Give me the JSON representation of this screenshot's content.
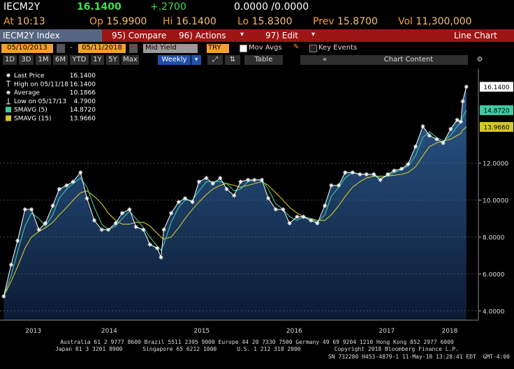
{
  "header": {
    "ticker": "IECM2Y",
    "price": "16.1400",
    "change": "+.2700",
    "bidask": "0.0000 /0.0000",
    "quote": [
      {
        "label": "At",
        "value": "10:13"
      },
      {
        "label": "Op",
        "value": "15.9900"
      },
      {
        "label": "Hi",
        "value": "16.1400"
      },
      {
        "label": "Lo",
        "value": "15.8300"
      },
      {
        "label": "Prev",
        "value": "15.8700"
      },
      {
        "label": "Vol",
        "value": "11,300,000"
      }
    ]
  },
  "toolbar": {
    "security": "IECM2Y Index",
    "menu": [
      "95) Compare",
      "96) Actions",
      "97) Edit"
    ],
    "view": "Line Chart",
    "start": "05/10/2013",
    "end": "05/11/2018",
    "field": "Mid Yield",
    "currency": "TRY",
    "mov_avgs": "Mov Avgs",
    "key_events": "Key Events",
    "ranges": [
      "1D",
      "3D",
      "1M",
      "6M",
      "YTD",
      "1Y",
      "5Y",
      "Max"
    ],
    "frequency": "Weekly",
    "table": "Table",
    "content": "Chart Content"
  },
  "chart_data": {
    "type": "line",
    "area": true,
    "grid": true,
    "x": [
      2013.36,
      2013.44,
      2013.51,
      2013.59,
      2013.66,
      2013.74,
      2013.81,
      2013.89,
      2013.96,
      2014.04,
      2014.11,
      2014.19,
      2014.26,
      2014.34,
      2014.42,
      2014.49,
      2014.57,
      2014.64,
      2014.72,
      2014.79,
      2014.87,
      2014.94,
      2015.02,
      2015.06,
      2015.09,
      2015.17,
      2015.25,
      2015.32,
      2015.4,
      2015.47,
      2015.55,
      2015.62,
      2015.7,
      2015.77,
      2015.85,
      2015.92,
      2016.0,
      2016.07,
      2016.15,
      2016.22,
      2016.3,
      2016.38,
      2016.45,
      2016.53,
      2016.6,
      2016.68,
      2016.75,
      2016.83,
      2016.9,
      2016.98,
      2017.05,
      2017.13,
      2017.21,
      2017.28,
      2017.36,
      2017.43,
      2017.51,
      2017.58,
      2017.66,
      2017.73,
      2017.81,
      2017.89,
      2017.96,
      2018.04,
      2018.11,
      2018.19,
      2018.26,
      2018.3,
      2018.32,
      2018.36
    ],
    "series": [
      {
        "name": "Last Price",
        "color": "#ffffff",
        "legend_value": "16.1400",
        "values": [
          4.79,
          6.5,
          7.8,
          9.5,
          9.5,
          8.4,
          8.75,
          9.7,
          10.6,
          10.8,
          11.0,
          11.5,
          10.1,
          8.9,
          8.4,
          8.4,
          8.75,
          9.3,
          9.5,
          8.55,
          8.4,
          7.6,
          7.4,
          6.9,
          8.4,
          9.3,
          9.9,
          10.1,
          9.9,
          11.0,
          11.2,
          10.9,
          11.2,
          10.6,
          10.25,
          11.0,
          11.1,
          11.1,
          11.1,
          10.1,
          9.5,
          9.5,
          8.75,
          9.1,
          9.1,
          8.9,
          8.75,
          9.7,
          10.8,
          10.8,
          11.5,
          11.5,
          11.4,
          11.4,
          11.4,
          11.1,
          11.4,
          11.6,
          11.7,
          11.95,
          12.9,
          14.0,
          13.5,
          13.3,
          13.1,
          13.85,
          14.35,
          14.25,
          15.35,
          16.14
        ]
      },
      {
        "name": "SMAVG (5)",
        "color": "#3fc9a0",
        "legend_value": "14.8720",
        "values": [
          4.79,
          5.9,
          7.2,
          8.6,
          9.3,
          9.0,
          8.6,
          9.2,
          10.1,
          10.6,
          10.9,
          11.2,
          10.7,
          9.6,
          8.7,
          8.4,
          8.6,
          9.0,
          9.4,
          9.0,
          8.5,
          8.0,
          7.5,
          7.3,
          7.6,
          8.8,
          9.6,
          10.0,
          10.0,
          10.5,
          11.0,
          11.0,
          11.0,
          10.9,
          10.5,
          10.6,
          11.0,
          11.1,
          11.1,
          10.6,
          9.8,
          9.5,
          9.1,
          8.9,
          9.1,
          9.0,
          8.8,
          9.2,
          10.2,
          10.7,
          11.2,
          11.5,
          11.4,
          11.4,
          11.4,
          11.2,
          11.3,
          11.5,
          11.65,
          11.85,
          12.4,
          13.4,
          13.7,
          13.4,
          13.2,
          13.5,
          14.0,
          14.2,
          14.5,
          14.872
        ]
      },
      {
        "name": "SMAVG (15)",
        "color": "#d6c82a",
        "legend_value": "13.9660",
        "values": [
          4.79,
          5.6,
          6.4,
          7.4,
          8.0,
          8.3,
          8.5,
          8.8,
          9.2,
          9.6,
          10.0,
          10.4,
          10.5,
          10.2,
          9.8,
          9.3,
          8.9,
          8.7,
          8.7,
          8.8,
          8.8,
          8.6,
          8.2,
          8.0,
          7.9,
          8.0,
          8.5,
          9.0,
          9.5,
          9.9,
          10.3,
          10.6,
          10.8,
          10.9,
          10.8,
          10.7,
          10.8,
          10.9,
          11.0,
          10.8,
          10.4,
          10.0,
          9.6,
          9.3,
          9.1,
          9.0,
          8.9,
          8.9,
          9.2,
          9.7,
          10.2,
          10.7,
          11.0,
          11.2,
          11.3,
          11.3,
          11.3,
          11.35,
          11.4,
          11.5,
          11.8,
          12.4,
          12.9,
          13.1,
          13.2,
          13.3,
          13.5,
          13.6,
          13.8,
          13.966
        ]
      }
    ],
    "stats": [
      {
        "name": "High on 05/11/18",
        "label": "16.1400"
      },
      {
        "name": "Average",
        "label": "10.1866"
      },
      {
        "name": "Low on 05/17/13",
        "label": "4.7900"
      }
    ],
    "xlim": [
      2013.32,
      2018.49
    ],
    "xticks": [
      {
        "value": 2013.68,
        "label": "2013"
      },
      {
        "value": 2014.5,
        "label": "2014"
      },
      {
        "value": 2015.5,
        "label": "2015"
      },
      {
        "value": 2016.5,
        "label": "2016"
      },
      {
        "value": 2017.5,
        "label": "2017"
      },
      {
        "value": 2018.18,
        "label": "2018"
      }
    ],
    "ylim": [
      3.5,
      17.1
    ],
    "yticks": [
      {
        "value": 4,
        "label": "4.0000"
      },
      {
        "value": 6,
        "label": "6.0000"
      },
      {
        "value": 8,
        "label": "8.0000"
      },
      {
        "value": 10,
        "label": "10.0000"
      },
      {
        "value": 12,
        "label": "12.0000"
      }
    ]
  },
  "footer": [
    "Australia 61 2 9777 8600 Brazil 5511 2395 9000 Europe 44 20 7330 7500 Germany 49 69 9204 1210 Hong Kong 852 2977 6000",
    "Japan 81 3 3201 8900      Singapore 65 6212 1000      U.S. 1 212 318 2000          Copyright 2018 Bloomberg Finance L.P.",
    "SN 732280 H453-4879-1 11-May-18 13:28:41 EDT  GMT-4:00"
  ]
}
